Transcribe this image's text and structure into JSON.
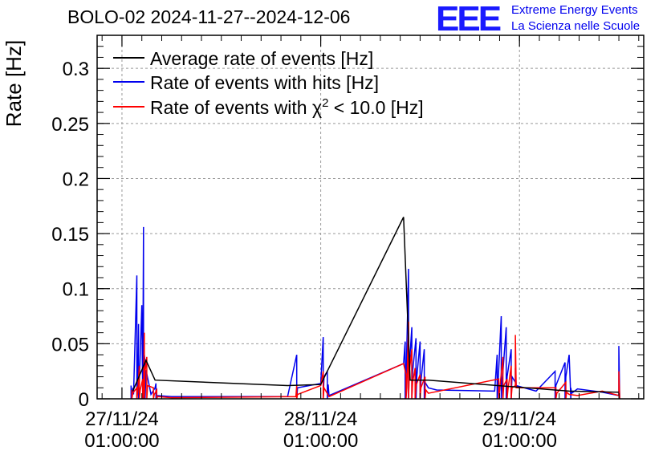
{
  "header": {
    "title": "BOLO-02 2024-11-27--2024-12-06",
    "logo": "EEE",
    "org_line1": "Extreme Energy Events",
    "org_line2": "La Scienza nelle Scuole"
  },
  "colors": {
    "average": "#000000",
    "hits": "#0000ee",
    "chi2": "#ff0000"
  },
  "chart_data": {
    "type": "line",
    "title": "BOLO-02 2024-11-27--2024-12-06",
    "ylabel": "Rate [Hz]",
    "xlabel": "",
    "x_unit": "hours since 27/11/24 01:00:00",
    "xlim": [
      -3,
      63
    ],
    "ylim": [
      0,
      0.33
    ],
    "grid": true,
    "legend_position": "top-left",
    "y_ticks": [
      {
        "v": 0,
        "label": "0"
      },
      {
        "v": 0.05,
        "label": "0.05"
      },
      {
        "v": 0.1,
        "label": "0.1"
      },
      {
        "v": 0.15,
        "label": "0.15"
      },
      {
        "v": 0.2,
        "label": "0.2"
      },
      {
        "v": 0.25,
        "label": "0.25"
      },
      {
        "v": 0.3,
        "label": "0.3"
      }
    ],
    "x_ticks": [
      {
        "v": 0,
        "label1": "27/11/24",
        "label2": "01:00:00"
      },
      {
        "v": 24,
        "label1": "28/11/24",
        "label2": "01:00:00"
      },
      {
        "v": 48,
        "label1": "29/11/24",
        "label2": "01:00:00"
      }
    ],
    "series": [
      {
        "name": "Average rate of events [Hz]",
        "legend_label": "Average rate of events [Hz]",
        "color": "#000000",
        "x": [
          1.3,
          2.9,
          4.0,
          20.0,
          24.0,
          34.0,
          34.8,
          37.0,
          54.0,
          60.0
        ],
        "y": [
          0.007,
          0.035,
          0.017,
          0.012,
          0.013,
          0.165,
          0.017,
          0.017,
          0.007,
          0.006
        ]
      },
      {
        "name": "Rate of events with hits [Hz]",
        "legend_label": "Rate of events with hits [Hz]",
        "color": "#0000ee",
        "x": [
          1.1,
          1.1,
          1.3,
          1.4,
          1.8,
          1.8,
          1.9,
          2.0,
          2.0,
          2.1,
          2.4,
          2.5,
          2.6,
          2.6,
          2.7,
          2.8,
          2.8,
          2.9,
          3.3,
          3.5,
          4.0,
          4.1,
          4.1,
          4.2,
          6.0,
          20.0,
          21.1,
          21.1,
          21.2,
          24.0,
          24.3,
          24.3,
          24.4,
          24.8,
          24.8,
          24.9,
          25.0,
          34.0,
          34.2,
          34.2,
          34.3,
          34.6,
          34.6,
          34.7,
          35.0,
          35.0,
          35.1,
          35.5,
          35.5,
          35.6,
          36.0,
          36.0,
          36.1,
          36.5,
          36.5,
          36.6,
          37.0,
          38.0,
          45.0,
          45.3,
          45.3,
          45.4,
          45.8,
          45.8,
          45.9,
          46.4,
          46.4,
          46.5,
          47.0,
          47.0,
          47.1,
          47.5,
          47.5,
          47.6,
          50.0,
          52.3,
          52.3,
          52.4,
          53.5,
          53.5,
          53.6,
          54.0,
          54.2,
          54.2,
          54.3,
          55.0,
          58.0,
          60.0,
          60.0,
          60.1
        ],
        "y": [
          0.012,
          0,
          0.01,
          0.004,
          0.112,
          0,
          0.02,
          0.068,
          0,
          0.015,
          0.085,
          0,
          0.156,
          0,
          0.04,
          0.033,
          0,
          0.026,
          0.012,
          0.004,
          0.01,
          0.014,
          0,
          0.003,
          0.002,
          0.002,
          0.04,
          0,
          0.01,
          0.014,
          0.056,
          0,
          0.02,
          0.025,
          0,
          0.013,
          0.003,
          0.032,
          0.052,
          0,
          0.015,
          0.118,
          0,
          0.03,
          0.065,
          0,
          0.025,
          0.055,
          0,
          0.02,
          0.052,
          0,
          0.016,
          0.045,
          0,
          0.015,
          0.01,
          0.008,
          0.007,
          0.04,
          0,
          0.012,
          0.075,
          0,
          0.015,
          0.065,
          0,
          0.02,
          0.045,
          0,
          0.02,
          0.015,
          0.028,
          0.012,
          0.007,
          0.025,
          0,
          0.012,
          0.033,
          0,
          0.02,
          0.04,
          0,
          0.01,
          0.005,
          0.009,
          0.006,
          0.003,
          0.048,
          0
        ]
      },
      {
        "name": "Rate of events with chi2 < 10.0 [Hz]",
        "legend_label": "Rate of events with χ",
        "legend_sup": "2",
        "legend_tail": " < 10.0 [Hz]",
        "color": "#ff0000",
        "x": [
          1.2,
          1.2,
          1.3,
          1.8,
          1.8,
          1.9,
          2.1,
          2.1,
          2.2,
          2.5,
          2.5,
          2.6,
          2.7,
          2.7,
          2.8,
          3.0,
          3.0,
          3.1,
          3.8,
          3.8,
          3.9,
          4.2,
          4.2,
          4.3,
          6.0,
          21.0,
          21.1,
          21.1,
          21.2,
          24.0,
          24.3,
          24.3,
          24.4,
          25.0,
          34.0,
          34.3,
          34.3,
          34.4,
          34.6,
          34.6,
          34.7,
          35.0,
          35.0,
          35.1,
          35.4,
          35.4,
          35.5,
          36.0,
          36.0,
          36.1,
          36.6,
          36.6,
          36.7,
          37.0,
          45.5,
          45.5,
          45.6,
          46.0,
          46.0,
          46.1,
          46.5,
          46.5,
          46.6,
          47.0,
          47.0,
          47.1,
          47.5,
          47.5,
          47.6,
          52.4,
          52.4,
          52.5,
          53.6,
          53.6,
          53.7,
          54.0,
          55.0,
          58.0,
          60.0,
          60.0,
          60.1
        ],
        "y": [
          0.008,
          0,
          0.005,
          0.01,
          0,
          0.006,
          0.03,
          0,
          0.008,
          0.018,
          0,
          0.006,
          0.06,
          0,
          0.025,
          0.038,
          0,
          0.012,
          0.01,
          0,
          0.004,
          0.008,
          0,
          0.002,
          0.001,
          0.002,
          0.012,
          0,
          0.004,
          0.012,
          0.025,
          0,
          0.01,
          0.002,
          0.032,
          0.022,
          0,
          0.01,
          0.07,
          0,
          0.025,
          0.045,
          0,
          0.015,
          0.028,
          0,
          0.012,
          0.022,
          0,
          0.01,
          0.02,
          0,
          0.008,
          0.005,
          0.018,
          0,
          0.008,
          0.038,
          0,
          0.012,
          0.018,
          0,
          0.008,
          0.03,
          0,
          0.01,
          0.012,
          0.058,
          0.01,
          0.01,
          0,
          0.005,
          0.015,
          0,
          0.006,
          0.004,
          0.003,
          0.007,
          0.003,
          0.025,
          0
        ]
      }
    ]
  }
}
